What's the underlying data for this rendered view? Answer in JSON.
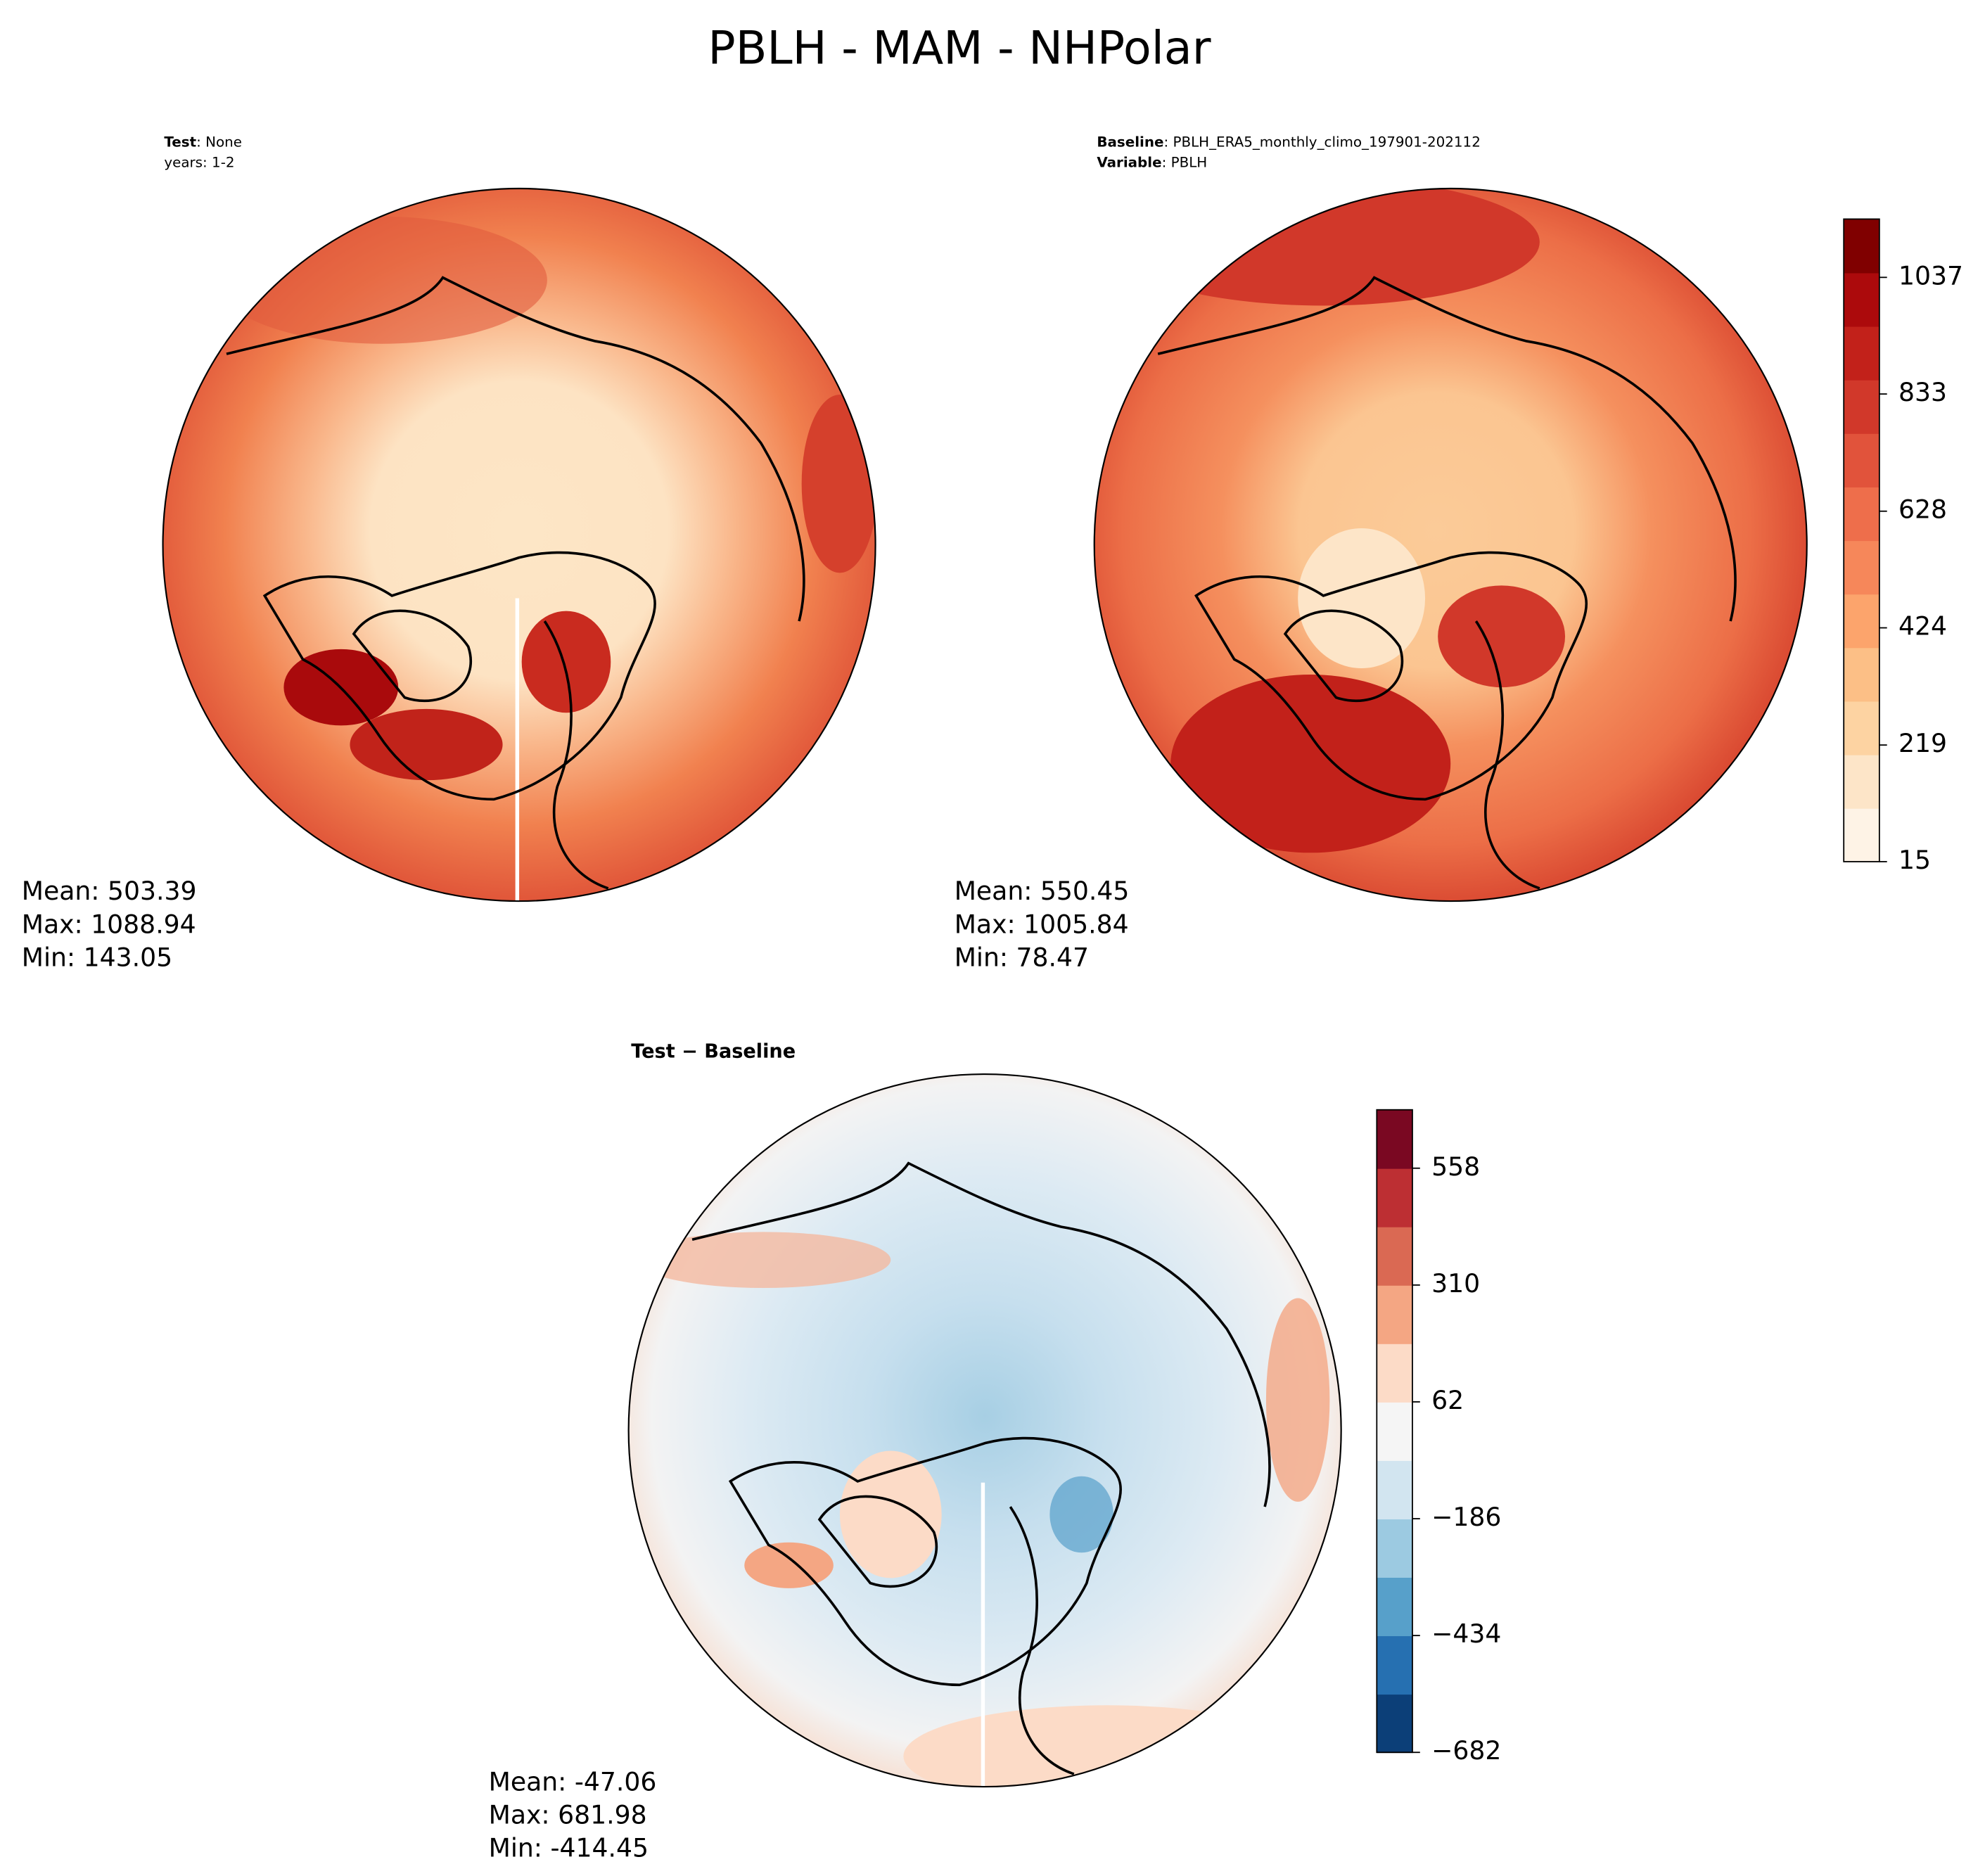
{
  "title": "PBLH - MAM - NHPolar",
  "panels": [
    {
      "header": [
        {
          "label": "Test",
          "value": ": None"
        },
        {
          "value": "years: 1-2"
        }
      ],
      "stats": [
        "Mean: 503.39",
        "Max: 1088.94",
        "Min: 143.05"
      ]
    },
    {
      "header": [
        {
          "label": "Baseline",
          "value": ": PBLH_ERA5_monthly_climo_197901-202112"
        },
        {
          "label": "Variable",
          "value": ": PBLH"
        }
      ],
      "stats": [
        "Mean: 550.45",
        "Max: 1005.84",
        "Min: 78.47"
      ]
    },
    {
      "header": [
        {
          "label": "Test − Baseline"
        }
      ],
      "stats": [
        "Mean: -47.06",
        "Max: 681.98",
        "Min: -414.45"
      ]
    }
  ],
  "colorbars": [
    {
      "lim": [
        15,
        1139
      ],
      "ticks": [
        15,
        219,
        424,
        628,
        833,
        1037
      ],
      "colors": [
        "#fef3e6",
        "#fde5c8",
        "#fdd3a2",
        "#fcbf86",
        "#fca46c",
        "#f6875a",
        "#ee6e4b",
        "#e1533b",
        "#d1382a",
        "#c2211a",
        "#ac0a0c",
        "#800000"
      ]
    },
    {
      "lim": [
        -682,
        682
      ],
      "ticks": [
        {
          "value": -682,
          "label": "−682"
        },
        {
          "value": -434,
          "label": "−434"
        },
        {
          "value": -186,
          "label": "−186"
        },
        62,
        310,
        558
      ],
      "colors": [
        "#0c3f78",
        "#2670b1",
        "#57a0ca",
        "#9ccae1",
        "#d2e5f0",
        "#f5f5f5",
        "#fcdbc7",
        "#f4a683",
        "#da6953",
        "#bd2f33",
        "#7a0822"
      ]
    }
  ]
}
